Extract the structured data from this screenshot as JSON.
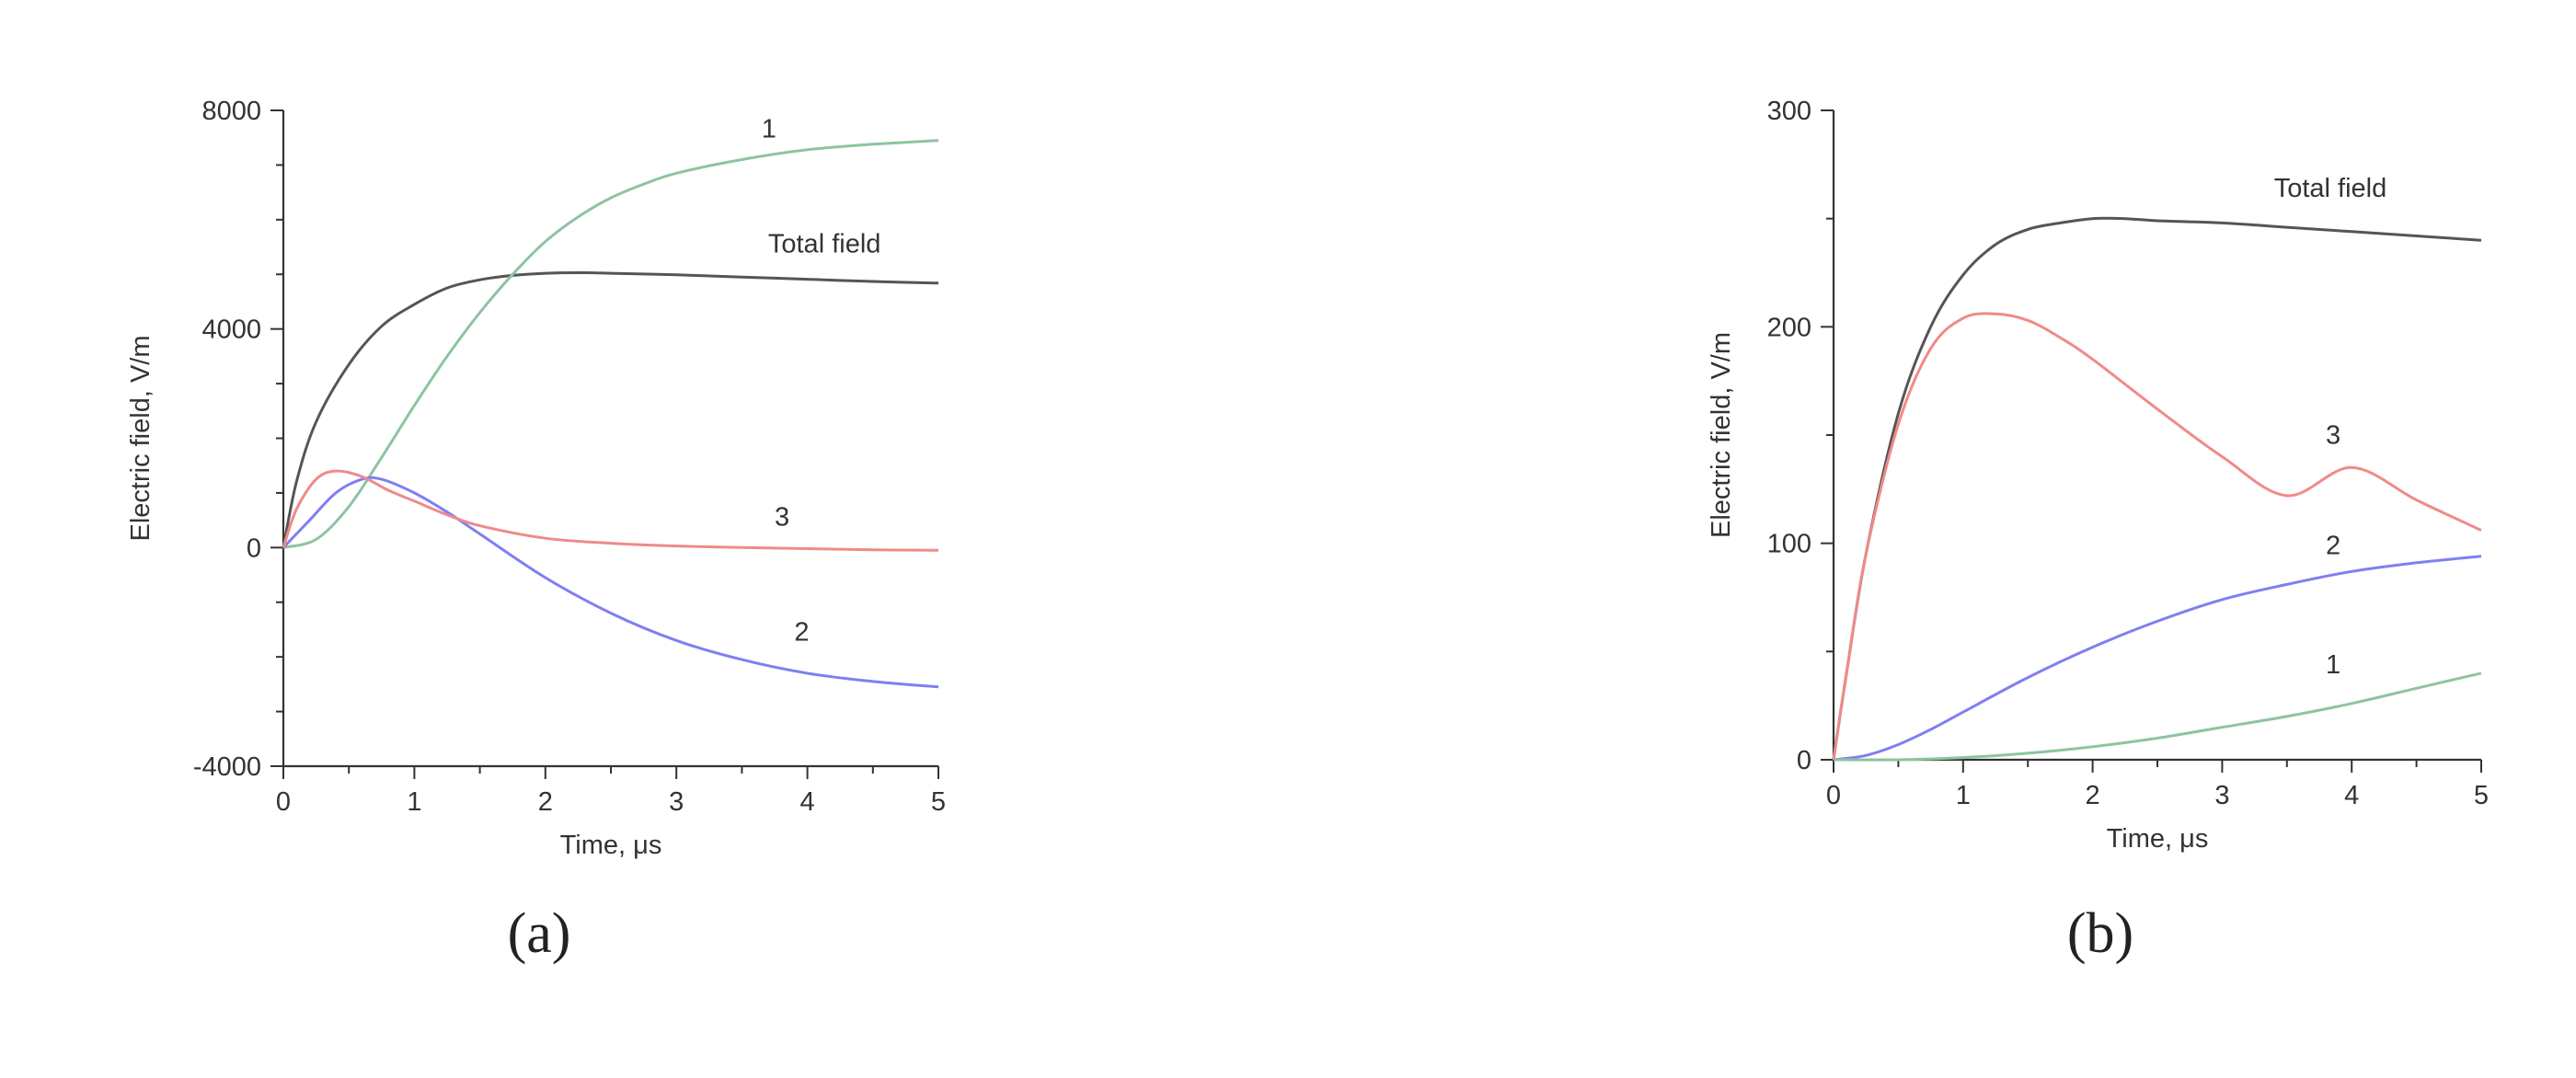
{
  "chart_data": [
    {
      "type": "line",
      "panel_label": "(a)",
      "xlabel": "Time, μs",
      "ylabel": "Electric field, V/m",
      "xlim": [
        0,
        5
      ],
      "ylim": [
        -4000,
        8000
      ],
      "x_ticks": [
        "0",
        "1",
        "2",
        "3",
        "4",
        "5"
      ],
      "y_ticks": [
        "-4000",
        "0",
        "4000",
        "8000"
      ],
      "x_major_values": [
        0,
        1,
        2,
        3,
        4,
        5
      ],
      "y_major_values": [
        -4000,
        0,
        4000,
        8000
      ],
      "x_minor_step": 0.5,
      "y_minor_step": 1000,
      "grid": false,
      "series": [
        {
          "name": "Total field",
          "color": "#555555",
          "x": [
            0,
            0.1,
            0.25,
            0.5,
            0.75,
            1,
            1.25,
            1.5,
            1.75,
            2,
            2.25,
            2.5,
            3,
            3.5,
            4,
            4.5,
            5
          ],
          "y": [
            0,
            1200,
            2300,
            3350,
            4050,
            4450,
            4750,
            4900,
            4980,
            5020,
            5030,
            5020,
            4990,
            4950,
            4910,
            4870,
            4840
          ]
        },
        {
          "name": "1",
          "color": "#8dc4a1",
          "x": [
            0,
            0.25,
            0.5,
            0.75,
            1,
            1.25,
            1.5,
            1.75,
            2,
            2.25,
            2.5,
            2.75,
            3,
            3.5,
            4,
            4.5,
            5
          ],
          "y": [
            0,
            150,
            750,
            1650,
            2600,
            3500,
            4300,
            5000,
            5600,
            6050,
            6400,
            6650,
            6850,
            7100,
            7280,
            7380,
            7450
          ]
        },
        {
          "name": "2",
          "color": "#7f7ff2",
          "x": [
            0,
            0.2,
            0.4,
            0.6,
            0.75,
            1,
            1.25,
            1.5,
            2,
            2.5,
            3,
            3.5,
            4,
            4.5,
            5
          ],
          "y": [
            0,
            500,
            1000,
            1250,
            1250,
            1000,
            650,
            250,
            -550,
            -1200,
            -1700,
            -2050,
            -2300,
            -2450,
            -2550
          ]
        },
        {
          "name": "3",
          "color": "#f08a8a",
          "x": [
            0,
            0.1,
            0.25,
            0.4,
            0.6,
            0.8,
            1,
            1.25,
            1.5,
            2,
            2.5,
            3,
            3.5,
            4,
            4.5,
            5
          ],
          "y": [
            0,
            700,
            1250,
            1400,
            1300,
            1050,
            850,
            600,
            400,
            170,
            80,
            30,
            0,
            -20,
            -40,
            -50
          ]
        }
      ],
      "annotations": [
        {
          "text": "1",
          "x": 3.65,
          "y": 7500
        },
        {
          "text": "Total field",
          "x": 3.7,
          "y": 5400
        },
        {
          "text": "3",
          "x": 3.75,
          "y": 400
        },
        {
          "text": "2",
          "x": 3.9,
          "y": -1700
        }
      ]
    },
    {
      "type": "line",
      "panel_label": "(b)",
      "xlabel": "Time, μs",
      "ylabel": "Electric field, V/m",
      "xlim": [
        0,
        5
      ],
      "ylim": [
        0,
        300
      ],
      "x_ticks": [
        "0",
        "1",
        "2",
        "3",
        "4",
        "5"
      ],
      "y_ticks": [
        "0",
        "100",
        "200",
        "300"
      ],
      "x_major_values": [
        0,
        1,
        2,
        3,
        4,
        5
      ],
      "y_major_values": [
        0,
        100,
        200,
        300
      ],
      "x_minor_step": 0.5,
      "y_minor_step": 50,
      "grid": false,
      "series": [
        {
          "name": "Total field",
          "color": "#555555",
          "x": [
            0,
            0.1,
            0.25,
            0.5,
            0.75,
            1,
            1.25,
            1.5,
            1.75,
            2,
            2.25,
            2.5,
            3,
            3.5,
            4,
            4.5,
            5
          ],
          "y": [
            0,
            40,
            95,
            160,
            200,
            224,
            238,
            245,
            248,
            250,
            250,
            249,
            248,
            246,
            244,
            242,
            240
          ]
        },
        {
          "name": "3",
          "color": "#f08a8a",
          "x": [
            0,
            0.1,
            0.25,
            0.5,
            0.75,
            1,
            1.25,
            1.5,
            1.75,
            2,
            2.5,
            3,
            3.5,
            4,
            4.5,
            5
          ],
          "y": [
            0,
            40,
            95,
            155,
            190,
            204,
            206,
            203,
            195,
            185,
            162,
            140,
            122,
            135,
            120,
            106
          ]
        },
        {
          "name": "2",
          "color": "#7f7ff2",
          "x": [
            0,
            0.25,
            0.5,
            0.75,
            1,
            1.5,
            2,
            2.5,
            3,
            3.5,
            4,
            4.5,
            5
          ],
          "y": [
            0,
            2,
            7,
            14,
            22,
            38,
            52,
            64,
            74,
            81,
            87,
            91,
            94
          ]
        },
        {
          "name": "1",
          "color": "#8dc4a1",
          "x": [
            0,
            0.5,
            1,
            1.5,
            2,
            2.5,
            3,
            3.5,
            4,
            4.5,
            5
          ],
          "y": [
            0,
            0,
            1,
            3,
            6,
            10,
            15,
            20,
            26,
            33,
            40
          ]
        }
      ],
      "annotations": [
        {
          "text": "Total field",
          "x": 3.4,
          "y": 260
        },
        {
          "text": "3",
          "x": 3.8,
          "y": 146
        },
        {
          "text": "2",
          "x": 3.8,
          "y": 95
        },
        {
          "text": "1",
          "x": 3.8,
          "y": 40
        }
      ]
    }
  ]
}
